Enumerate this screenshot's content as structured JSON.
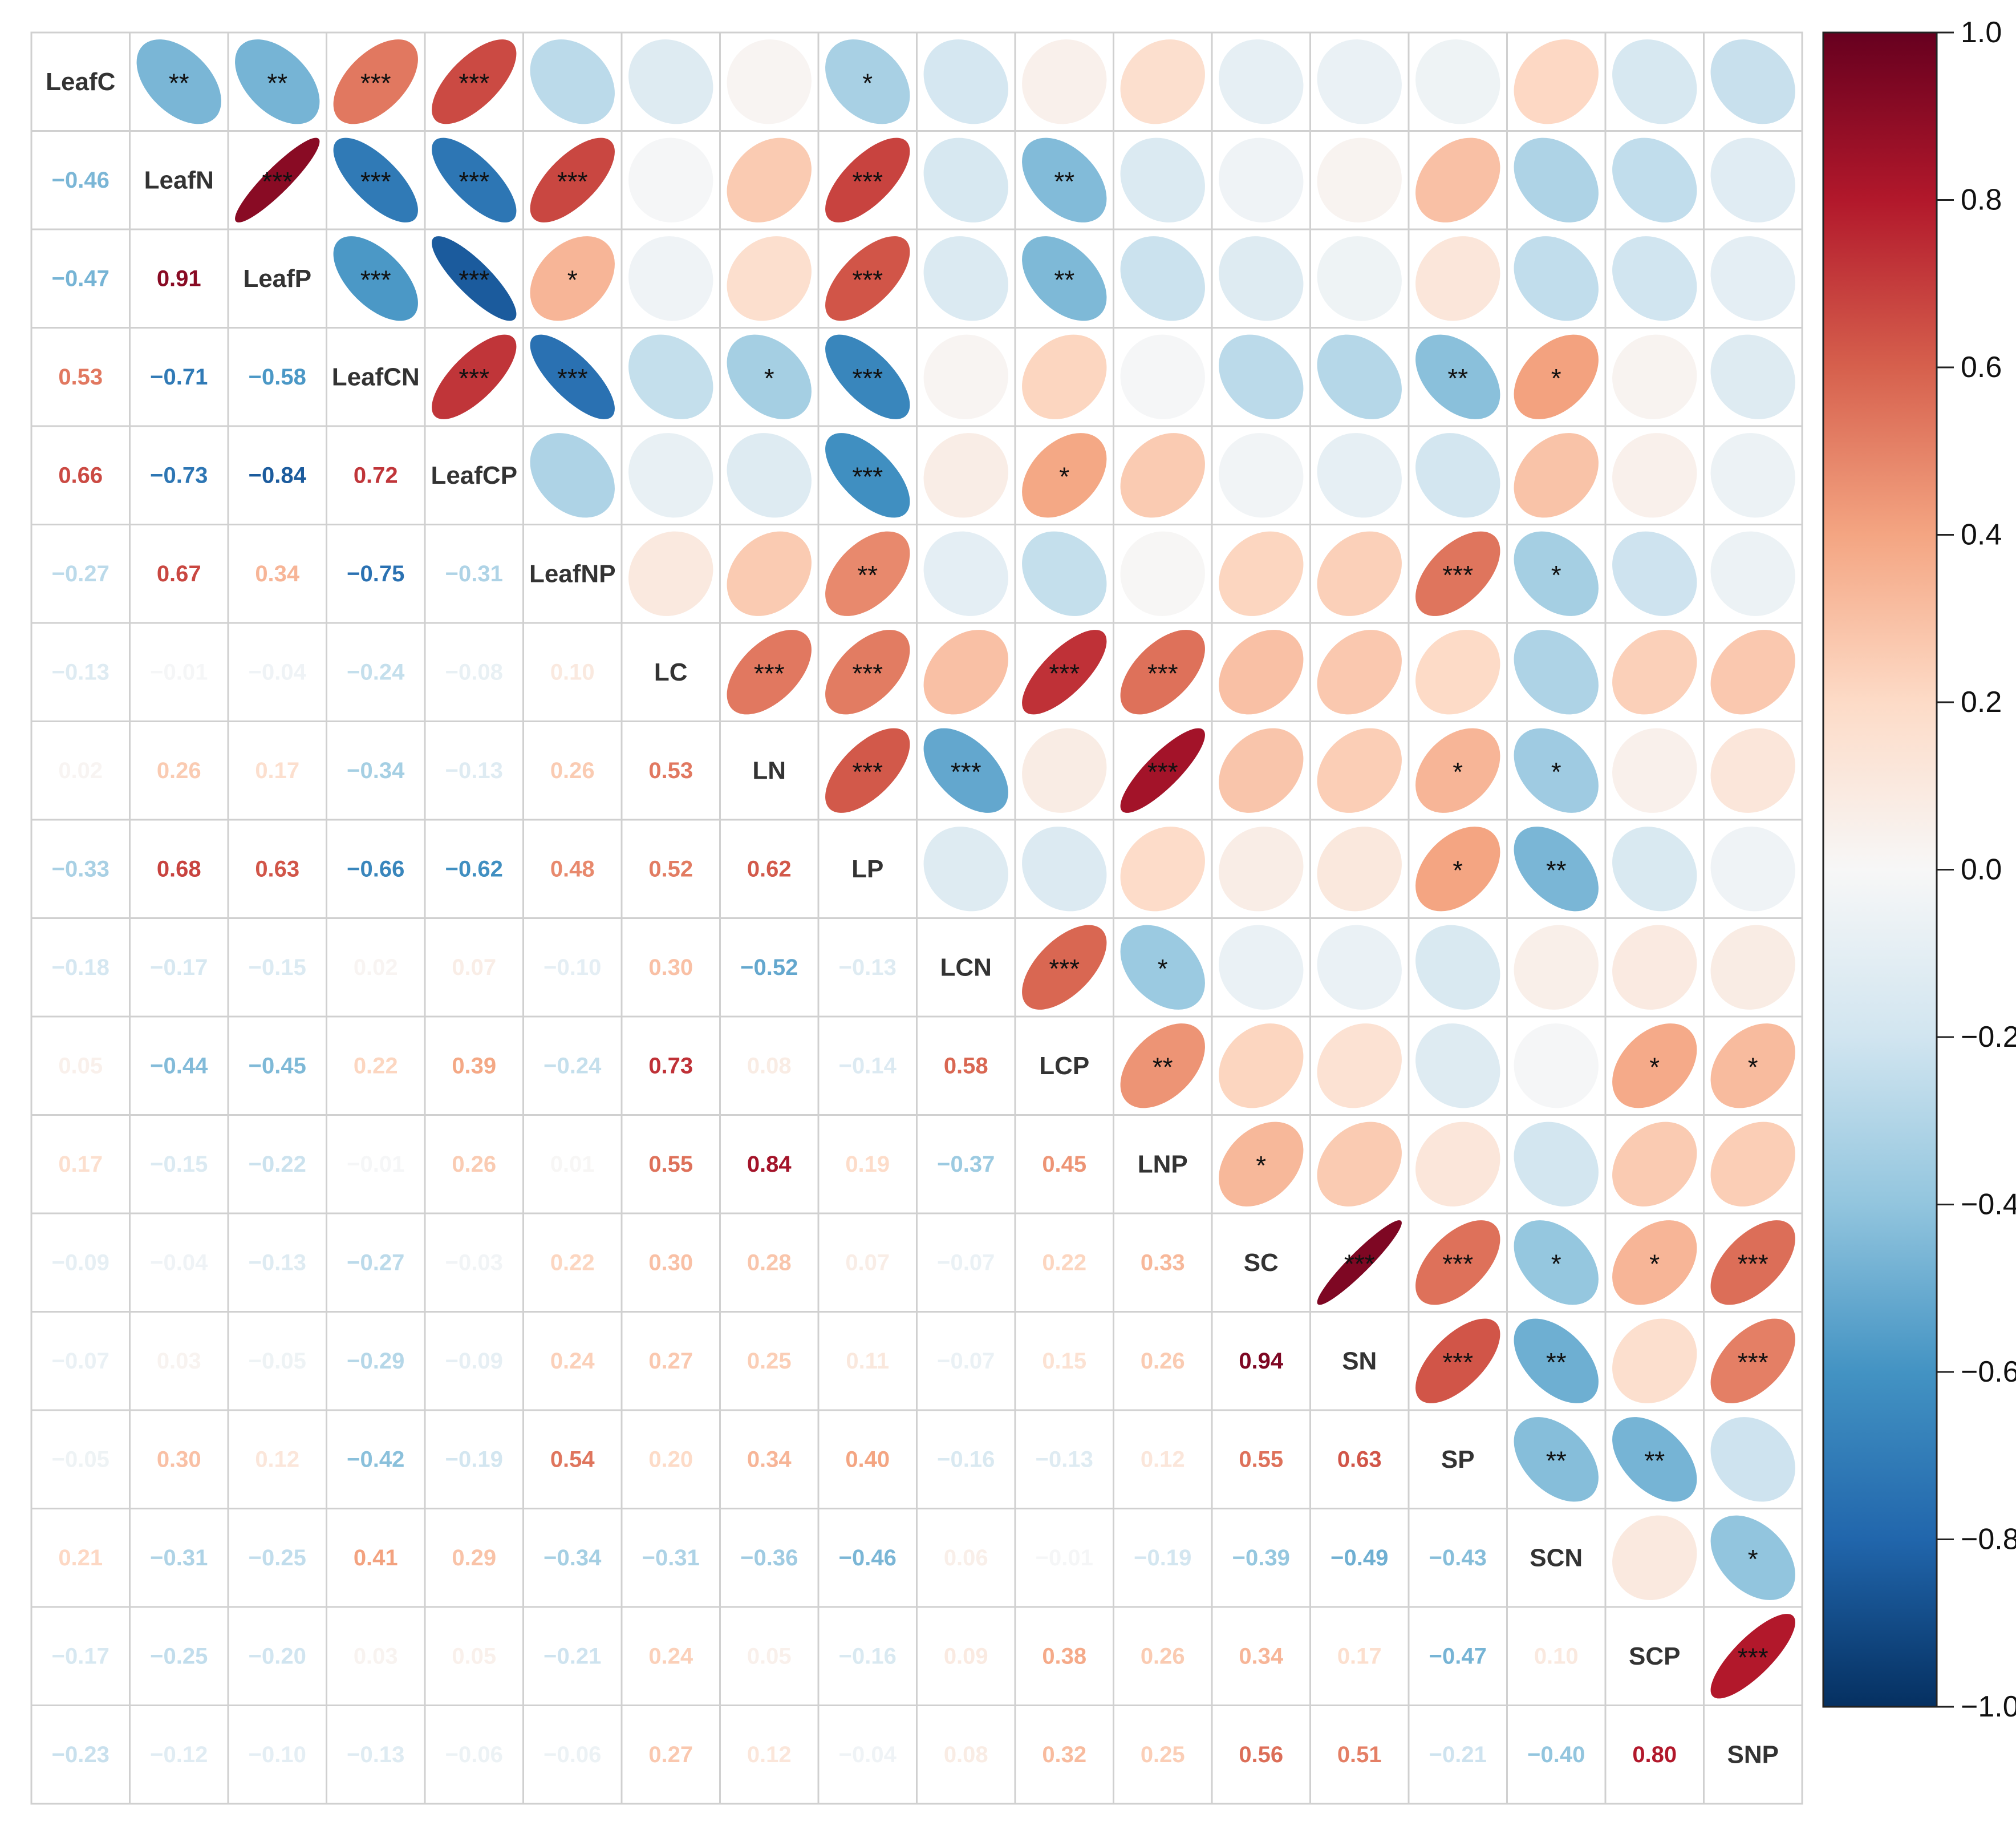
{
  "chart_data": {
    "type": "heatmap",
    "subtype": "correlation-matrix",
    "upper": "ellipse",
    "lower": "number",
    "variables": [
      "LeafC",
      "LeafN",
      "LeafP",
      "LeafCN",
      "LeafCP",
      "LeafNP",
      "LC",
      "LN",
      "LP",
      "LCN",
      "LCP",
      "LNP",
      "SC",
      "SN",
      "SP",
      "SCN",
      "SCP",
      "SNP"
    ],
    "matrix": [
      [
        1,
        -0.46,
        -0.47,
        0.53,
        0.66,
        -0.27,
        -0.13,
        0.02,
        -0.33,
        -0.18,
        0.05,
        0.17,
        -0.09,
        -0.07,
        -0.05,
        0.21,
        -0.17,
        -0.23
      ],
      [
        -0.46,
        1,
        0.91,
        -0.71,
        -0.73,
        0.67,
        -0.01,
        0.26,
        0.68,
        -0.17,
        -0.44,
        -0.15,
        -0.04,
        0.03,
        0.3,
        -0.31,
        -0.25,
        -0.12
      ],
      [
        -0.47,
        0.91,
        1,
        -0.58,
        -0.84,
        0.34,
        -0.04,
        0.17,
        0.63,
        -0.15,
        -0.45,
        -0.22,
        -0.13,
        -0.05,
        0.12,
        -0.25,
        -0.2,
        -0.1
      ],
      [
        0.53,
        -0.71,
        -0.58,
        1,
        0.72,
        -0.75,
        -0.24,
        -0.34,
        -0.66,
        0.02,
        0.22,
        -0.01,
        -0.27,
        -0.29,
        -0.42,
        0.41,
        0.03,
        -0.13
      ],
      [
        0.66,
        -0.73,
        -0.84,
        0.72,
        1,
        -0.31,
        -0.08,
        -0.13,
        -0.62,
        0.07,
        0.39,
        0.26,
        -0.03,
        -0.09,
        -0.19,
        0.29,
        0.05,
        -0.06
      ],
      [
        -0.27,
        0.67,
        0.34,
        -0.75,
        -0.31,
        1,
        0.1,
        0.26,
        0.48,
        -0.1,
        -0.24,
        0.01,
        0.22,
        0.24,
        0.54,
        -0.34,
        -0.21,
        -0.06
      ],
      [
        -0.13,
        -0.01,
        -0.04,
        -0.24,
        -0.08,
        0.1,
        1,
        0.53,
        0.52,
        0.3,
        0.73,
        0.55,
        0.3,
        0.27,
        0.2,
        -0.31,
        0.24,
        0.27
      ],
      [
        0.02,
        0.26,
        0.17,
        -0.34,
        -0.13,
        0.26,
        0.53,
        1,
        0.62,
        -0.52,
        0.08,
        0.84,
        0.28,
        0.25,
        0.34,
        -0.36,
        0.05,
        0.12
      ],
      [
        -0.33,
        0.68,
        0.63,
        -0.66,
        -0.62,
        0.48,
        0.52,
        0.62,
        1,
        -0.13,
        -0.14,
        0.19,
        0.07,
        0.11,
        0.4,
        -0.46,
        -0.16,
        -0.04
      ],
      [
        -0.18,
        -0.17,
        -0.15,
        0.02,
        0.07,
        -0.1,
        0.3,
        -0.52,
        -0.13,
        1,
        0.58,
        -0.37,
        -0.07,
        -0.07,
        -0.16,
        0.06,
        0.09,
        0.08
      ],
      [
        0.05,
        -0.44,
        -0.45,
        0.22,
        0.39,
        -0.24,
        0.73,
        0.08,
        -0.14,
        0.58,
        1,
        0.45,
        0.22,
        0.15,
        -0.13,
        -0.01,
        0.38,
        0.32
      ],
      [
        0.17,
        -0.15,
        -0.22,
        -0.01,
        0.26,
        0.01,
        0.55,
        0.84,
        0.19,
        -0.37,
        0.45,
        1,
        0.33,
        0.26,
        0.12,
        -0.19,
        0.26,
        0.25
      ],
      [
        -0.09,
        -0.04,
        -0.13,
        -0.27,
        -0.03,
        0.22,
        0.3,
        0.28,
        0.07,
        -0.07,
        0.22,
        0.33,
        1,
        0.94,
        0.55,
        -0.39,
        0.34,
        0.56
      ],
      [
        -0.07,
        0.03,
        -0.05,
        -0.29,
        -0.09,
        0.24,
        0.27,
        0.25,
        0.11,
        -0.07,
        0.15,
        0.26,
        0.94,
        1,
        0.63,
        -0.49,
        0.17,
        0.51
      ],
      [
        -0.05,
        0.3,
        0.12,
        -0.42,
        -0.19,
        0.54,
        0.2,
        0.34,
        0.4,
        -0.16,
        -0.13,
        0.12,
        0.55,
        0.63,
        1,
        -0.43,
        -0.47,
        -0.21
      ],
      [
        0.21,
        -0.31,
        -0.25,
        0.41,
        0.29,
        -0.34,
        -0.31,
        -0.36,
        -0.46,
        0.06,
        -0.01,
        -0.19,
        -0.39,
        -0.49,
        -0.43,
        1,
        0.1,
        -0.4
      ],
      [
        -0.17,
        -0.25,
        -0.2,
        0.03,
        0.05,
        -0.21,
        0.24,
        0.05,
        -0.16,
        0.09,
        0.38,
        0.26,
        0.34,
        0.17,
        -0.47,
        0.1,
        1,
        0.8
      ],
      [
        -0.23,
        -0.12,
        -0.1,
        -0.13,
        -0.06,
        -0.06,
        0.27,
        0.12,
        -0.04,
        0.08,
        0.32,
        0.25,
        0.56,
        0.51,
        -0.21,
        -0.4,
        0.8,
        1
      ]
    ],
    "significance": {
      "0": {
        "1": "**",
        "2": "**",
        "3": "***",
        "4": "***",
        "8": "*"
      },
      "1": {
        "2": "***",
        "3": "***",
        "4": "***",
        "5": "***",
        "8": "***",
        "10": "**"
      },
      "2": {
        "3": "***",
        "4": "***",
        "5": "*",
        "8": "***",
        "10": "**"
      },
      "3": {
        "4": "***",
        "5": "***",
        "7": "*",
        "8": "***",
        "14": "**",
        "15": "*"
      },
      "4": {
        "8": "***",
        "10": "*"
      },
      "5": {
        "8": "**",
        "14": "***",
        "15": "*"
      },
      "6": {
        "7": "***",
        "8": "***",
        "10": "***",
        "11": "***"
      },
      "7": {
        "8": "***",
        "9": "***",
        "11": "***",
        "14": "*",
        "15": "*"
      },
      "8": {
        "14": "*",
        "15": "**"
      },
      "9": {
        "10": "***",
        "11": "*"
      },
      "10": {
        "11": "**",
        "16": "*",
        "17": "*"
      },
      "11": {
        "12": "*"
      },
      "12": {
        "13": "***",
        "14": "***",
        "15": "*",
        "16": "*",
        "17": "***"
      },
      "13": {
        "14": "***",
        "15": "**",
        "17": "***"
      },
      "14": {
        "15": "**",
        "16": "**"
      },
      "15": {
        "17": "*"
      },
      "16": {
        "17": "***"
      }
    },
    "colorbar": {
      "range": [
        -1,
        1
      ],
      "ticks": [
        "1.0",
        "0.8",
        "0.6",
        "0.4",
        "0.2",
        "0.0",
        "−0.2",
        "−0.4",
        "−0.6",
        "−0.8",
        "−1.0"
      ],
      "palette": [
        "#053061",
        "#2166AC",
        "#4393C3",
        "#92C5DE",
        "#D1E5F0",
        "#F7F7F7",
        "#FDDBC7",
        "#F4A582",
        "#D6604D",
        "#B2182B",
        "#67001F"
      ]
    }
  }
}
